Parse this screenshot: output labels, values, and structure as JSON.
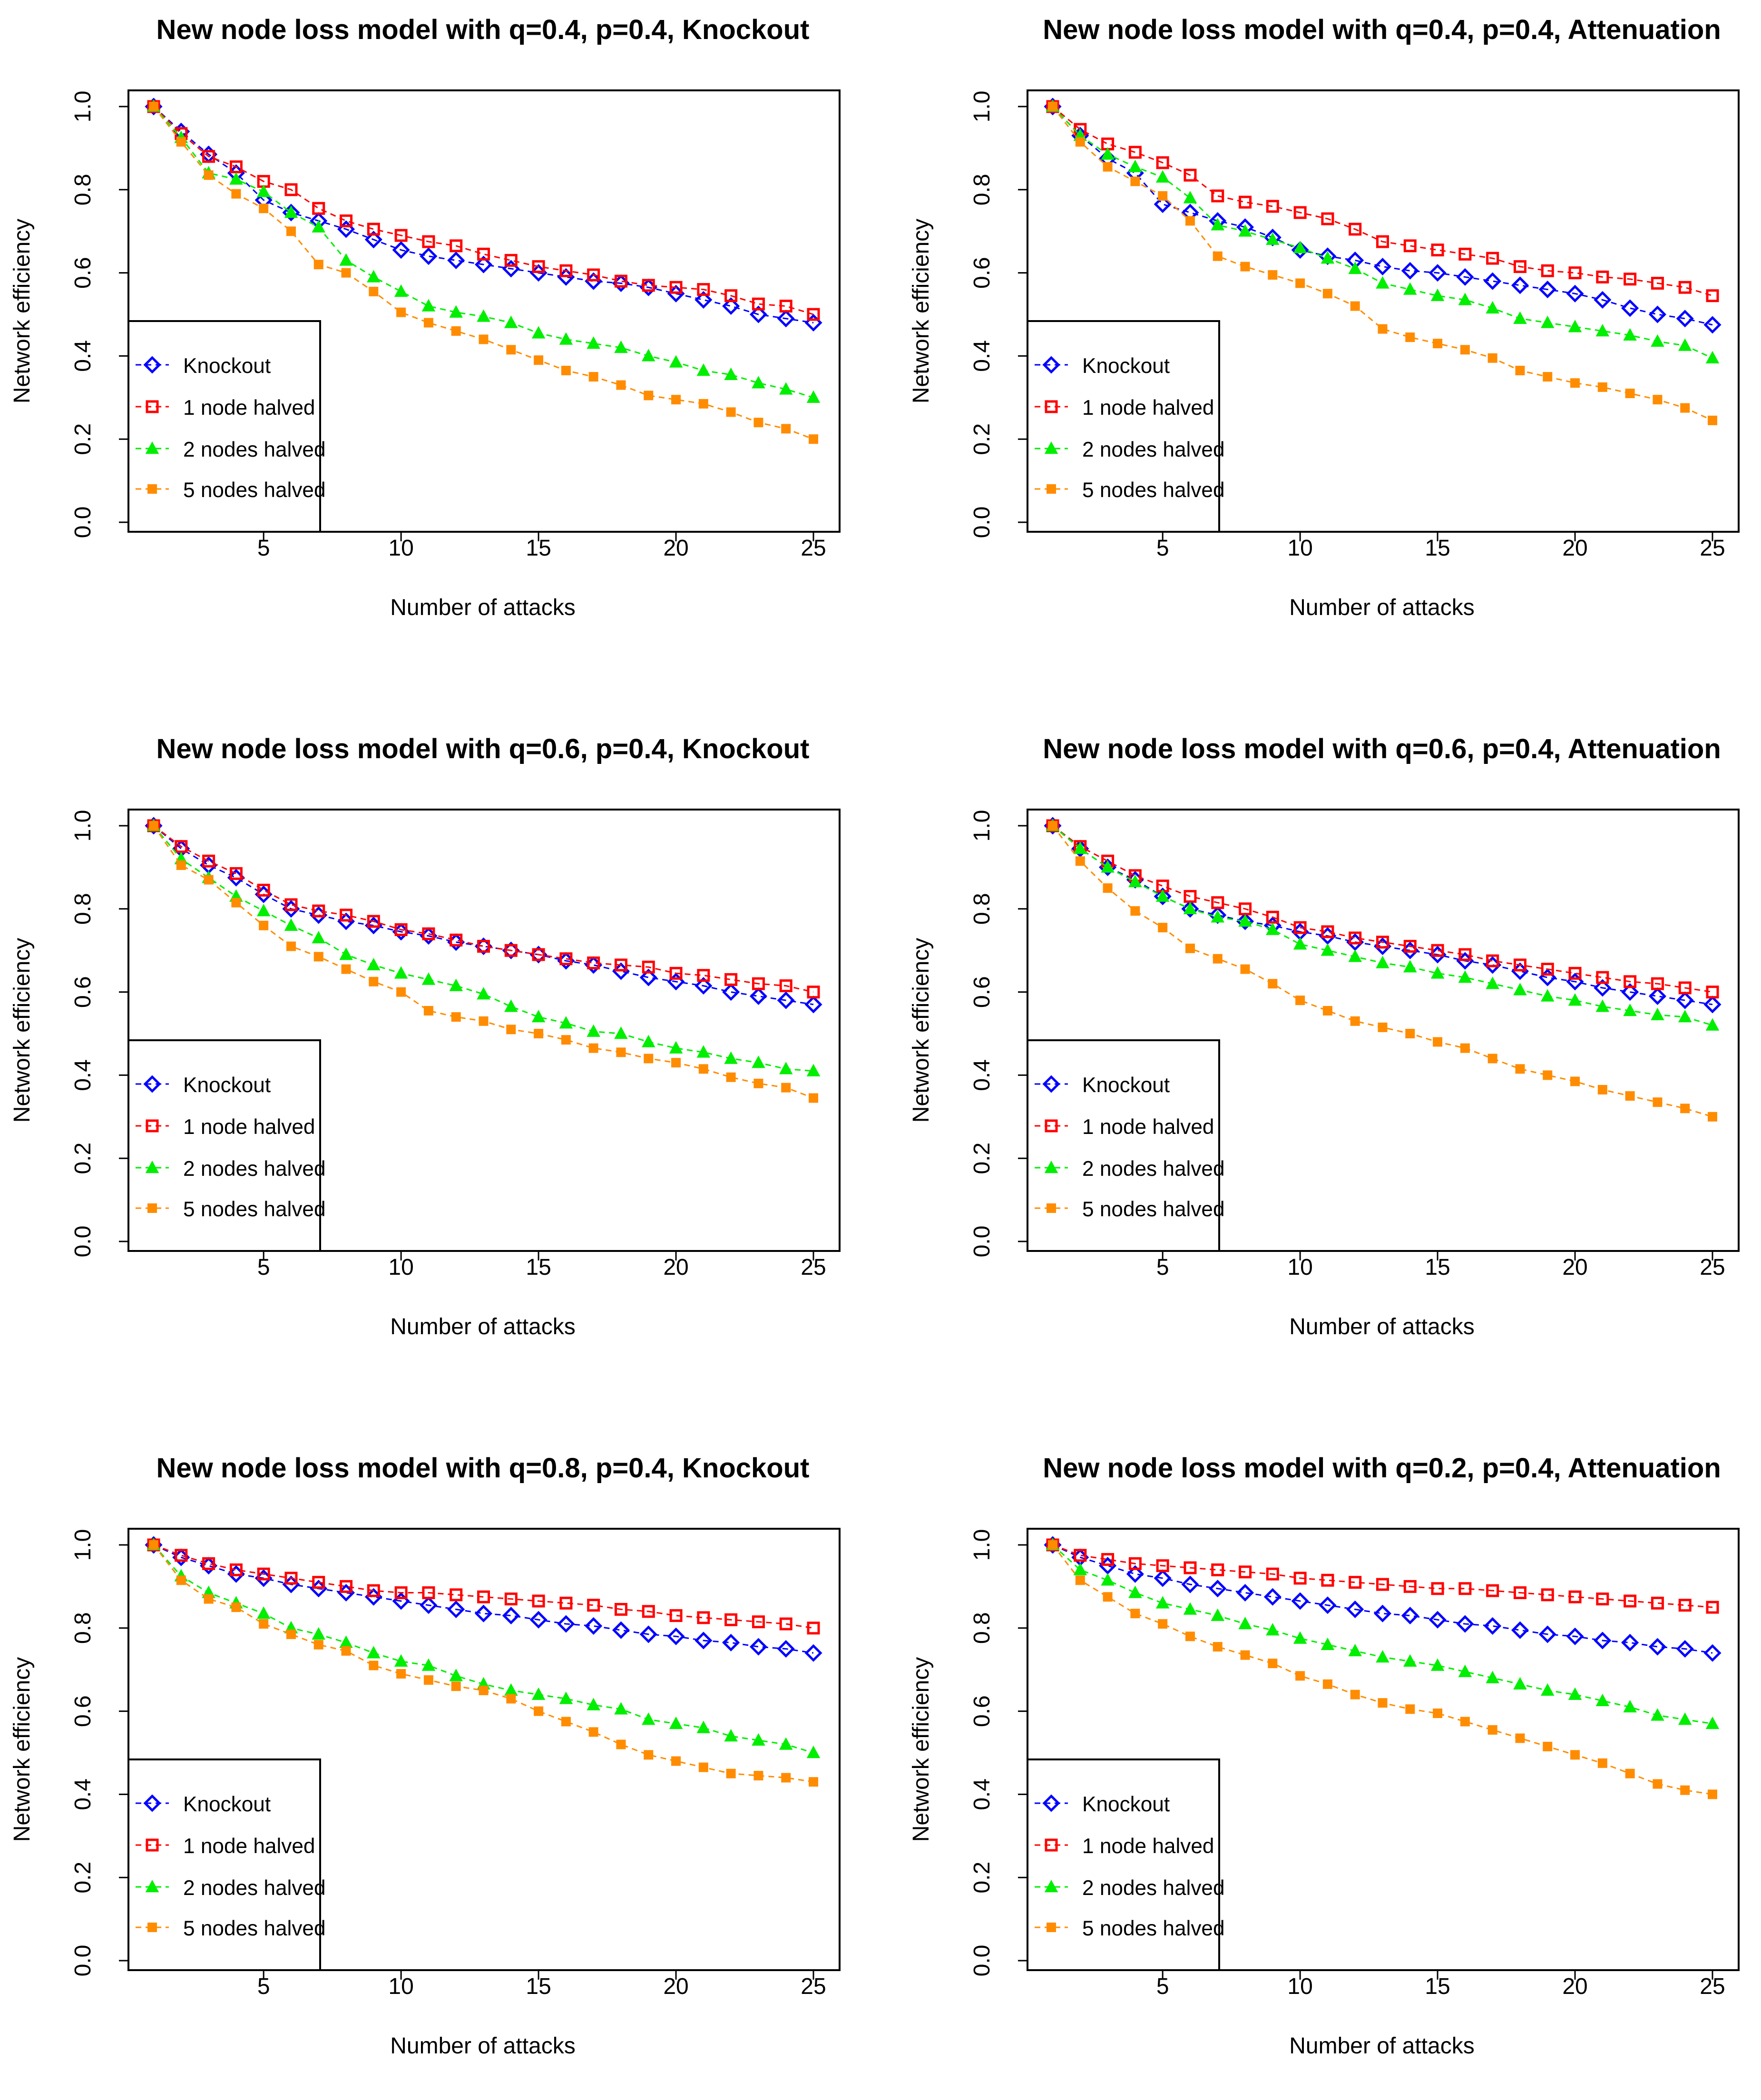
{
  "chart_data": [
    {
      "type": "line",
      "title": "New node loss model with q=0.4, p=0.4, Knockout",
      "xlabel": "Number of attacks",
      "ylabel": "Network efficiency",
      "xlim": [
        1,
        25
      ],
      "ylim": [
        0,
        1
      ],
      "xticks": [
        "5",
        "10",
        "15",
        "20",
        "25"
      ],
      "yticks": [
        "0.0",
        "0.2",
        "0.4",
        "0.6",
        "0.8",
        "1.0"
      ],
      "legend_position": "bottom-left",
      "x": [
        1,
        2,
        3,
        4,
        5,
        6,
        7,
        8,
        9,
        10,
        11,
        12,
        13,
        14,
        15,
        16,
        17,
        18,
        19,
        20,
        21,
        22,
        23,
        24,
        25
      ],
      "series": [
        {
          "name": "Knockout",
          "values": [
            1,
            0.94,
            0.885,
            0.84,
            0.775,
            0.745,
            0.725,
            0.705,
            0.68,
            0.655,
            0.64,
            0.63,
            0.62,
            0.61,
            0.6,
            0.59,
            0.58,
            0.575,
            0.565,
            0.55,
            0.535,
            0.52,
            0.5,
            0.49,
            0.48
          ]
        },
        {
          "name": "1 node halved",
          "values": [
            1,
            0.935,
            0.88,
            0.855,
            0.82,
            0.8,
            0.755,
            0.725,
            0.705,
            0.69,
            0.675,
            0.665,
            0.645,
            0.63,
            0.615,
            0.605,
            0.595,
            0.58,
            0.57,
            0.565,
            0.56,
            0.545,
            0.525,
            0.52,
            0.5
          ]
        },
        {
          "name": "2 nodes halved",
          "values": [
            1,
            0.925,
            0.84,
            0.825,
            0.795,
            0.745,
            0.71,
            0.63,
            0.59,
            0.555,
            0.52,
            0.505,
            0.495,
            0.48,
            0.455,
            0.44,
            0.43,
            0.42,
            0.4,
            0.385,
            0.365,
            0.355,
            0.335,
            0.32,
            0.3
          ]
        },
        {
          "name": "5 nodes halved",
          "values": [
            1,
            0.915,
            0.835,
            0.79,
            0.755,
            0.7,
            0.62,
            0.6,
            0.555,
            0.505,
            0.48,
            0.46,
            0.44,
            0.415,
            0.39,
            0.365,
            0.35,
            0.33,
            0.305,
            0.295,
            0.285,
            0.265,
            0.24,
            0.225,
            0.2
          ]
        }
      ]
    },
    {
      "type": "line",
      "title": "New node loss model with q=0.4, p=0.4, Attenuation",
      "xlabel": "Number of attacks",
      "ylabel": "Network efficiency",
      "xlim": [
        1,
        25
      ],
      "ylim": [
        0,
        1
      ],
      "xticks": [
        "5",
        "10",
        "15",
        "20",
        "25"
      ],
      "yticks": [
        "0.0",
        "0.2",
        "0.4",
        "0.6",
        "0.8",
        "1.0"
      ],
      "legend_position": "bottom-left",
      "x": [
        1,
        2,
        3,
        4,
        5,
        6,
        7,
        8,
        9,
        10,
        11,
        12,
        13,
        14,
        15,
        16,
        17,
        18,
        19,
        20,
        21,
        22,
        23,
        24,
        25
      ],
      "series": [
        {
          "name": "Knockout",
          "values": [
            1,
            0.93,
            0.875,
            0.84,
            0.765,
            0.745,
            0.725,
            0.71,
            0.685,
            0.655,
            0.64,
            0.63,
            0.615,
            0.605,
            0.6,
            0.59,
            0.58,
            0.57,
            0.56,
            0.55,
            0.535,
            0.515,
            0.5,
            0.49,
            0.475
          ]
        },
        {
          "name": "1 node halved",
          "values": [
            1,
            0.945,
            0.91,
            0.89,
            0.865,
            0.835,
            0.785,
            0.77,
            0.76,
            0.745,
            0.73,
            0.705,
            0.675,
            0.665,
            0.655,
            0.645,
            0.635,
            0.615,
            0.605,
            0.6,
            0.59,
            0.585,
            0.575,
            0.565,
            0.545
          ]
        },
        {
          "name": "2 nodes halved",
          "values": [
            1,
            0.93,
            0.885,
            0.855,
            0.83,
            0.78,
            0.715,
            0.7,
            0.68,
            0.66,
            0.635,
            0.61,
            0.575,
            0.56,
            0.545,
            0.535,
            0.515,
            0.49,
            0.48,
            0.47,
            0.46,
            0.45,
            0.435,
            0.425,
            0.395
          ]
        },
        {
          "name": "5 nodes halved",
          "values": [
            1,
            0.915,
            0.855,
            0.82,
            0.785,
            0.725,
            0.64,
            0.615,
            0.595,
            0.575,
            0.55,
            0.52,
            0.465,
            0.445,
            0.43,
            0.415,
            0.395,
            0.365,
            0.35,
            0.335,
            0.325,
            0.31,
            0.295,
            0.275,
            0.245
          ]
        }
      ]
    },
    {
      "type": "line",
      "title": "New node loss model with q=0.6, p=0.4, Knockout",
      "xlabel": "Number of attacks",
      "ylabel": "Network efficiency",
      "xlim": [
        1,
        25
      ],
      "ylim": [
        0,
        1
      ],
      "xticks": [
        "5",
        "10",
        "15",
        "20",
        "25"
      ],
      "yticks": [
        "0.0",
        "0.2",
        "0.4",
        "0.6",
        "0.8",
        "1.0"
      ],
      "legend_position": "bottom-left",
      "x": [
        1,
        2,
        3,
        4,
        5,
        6,
        7,
        8,
        9,
        10,
        11,
        12,
        13,
        14,
        15,
        16,
        17,
        18,
        19,
        20,
        21,
        22,
        23,
        24,
        25
      ],
      "series": [
        {
          "name": "Knockout",
          "values": [
            1,
            0.945,
            0.905,
            0.875,
            0.835,
            0.8,
            0.785,
            0.77,
            0.76,
            0.745,
            0.735,
            0.72,
            0.71,
            0.7,
            0.69,
            0.675,
            0.665,
            0.65,
            0.635,
            0.625,
            0.615,
            0.6,
            0.59,
            0.58,
            0.57
          ]
        },
        {
          "name": "1 node halved",
          "values": [
            1,
            0.95,
            0.915,
            0.885,
            0.845,
            0.81,
            0.795,
            0.785,
            0.77,
            0.75,
            0.74,
            0.725,
            0.71,
            0.7,
            0.69,
            0.68,
            0.67,
            0.665,
            0.66,
            0.645,
            0.64,
            0.63,
            0.62,
            0.615,
            0.6
          ]
        },
        {
          "name": "2 nodes halved",
          "values": [
            1,
            0.92,
            0.875,
            0.83,
            0.795,
            0.76,
            0.73,
            0.69,
            0.665,
            0.645,
            0.63,
            0.615,
            0.595,
            0.565,
            0.54,
            0.525,
            0.505,
            0.5,
            0.48,
            0.465,
            0.455,
            0.44,
            0.43,
            0.415,
            0.41
          ]
        },
        {
          "name": "5 nodes halved",
          "values": [
            1,
            0.905,
            0.87,
            0.815,
            0.76,
            0.71,
            0.685,
            0.655,
            0.625,
            0.6,
            0.555,
            0.54,
            0.53,
            0.51,
            0.5,
            0.485,
            0.465,
            0.455,
            0.44,
            0.43,
            0.415,
            0.395,
            0.38,
            0.37,
            0.345
          ]
        }
      ]
    },
    {
      "type": "line",
      "title": "New node loss model with q=0.6, p=0.4, Attenuation",
      "xlabel": "Number of attacks",
      "ylabel": "Network efficiency",
      "xlim": [
        1,
        25
      ],
      "ylim": [
        0,
        1
      ],
      "xticks": [
        "5",
        "10",
        "15",
        "20",
        "25"
      ],
      "yticks": [
        "0.0",
        "0.2",
        "0.4",
        "0.6",
        "0.8",
        "1.0"
      ],
      "legend_position": "bottom-left",
      "x": [
        1,
        2,
        3,
        4,
        5,
        6,
        7,
        8,
        9,
        10,
        11,
        12,
        13,
        14,
        15,
        16,
        17,
        18,
        19,
        20,
        21,
        22,
        23,
        24,
        25
      ],
      "series": [
        {
          "name": "Knockout",
          "values": [
            1,
            0.945,
            0.9,
            0.87,
            0.83,
            0.8,
            0.785,
            0.77,
            0.76,
            0.745,
            0.735,
            0.72,
            0.71,
            0.7,
            0.69,
            0.675,
            0.665,
            0.65,
            0.635,
            0.625,
            0.61,
            0.6,
            0.59,
            0.58,
            0.57
          ]
        },
        {
          "name": "1 node halved",
          "values": [
            1,
            0.95,
            0.915,
            0.88,
            0.855,
            0.83,
            0.815,
            0.8,
            0.78,
            0.755,
            0.745,
            0.73,
            0.72,
            0.71,
            0.7,
            0.69,
            0.675,
            0.665,
            0.655,
            0.645,
            0.635,
            0.625,
            0.62,
            0.61,
            0.6
          ]
        },
        {
          "name": "2 nodes halved",
          "values": [
            1,
            0.945,
            0.9,
            0.865,
            0.83,
            0.8,
            0.78,
            0.77,
            0.75,
            0.715,
            0.7,
            0.685,
            0.67,
            0.66,
            0.645,
            0.635,
            0.62,
            0.605,
            0.59,
            0.58,
            0.565,
            0.555,
            0.545,
            0.54,
            0.52
          ]
        },
        {
          "name": "5 nodes halved",
          "values": [
            1,
            0.915,
            0.85,
            0.795,
            0.755,
            0.705,
            0.68,
            0.655,
            0.62,
            0.58,
            0.555,
            0.53,
            0.515,
            0.5,
            0.48,
            0.465,
            0.44,
            0.415,
            0.4,
            0.385,
            0.365,
            0.35,
            0.335,
            0.32,
            0.3
          ]
        }
      ]
    },
    {
      "type": "line",
      "title": "New node loss model with q=0.8, p=0.4, Knockout",
      "xlabel": "Number of attacks",
      "ylabel": "Network efficiency",
      "xlim": [
        1,
        25
      ],
      "ylim": [
        0,
        1
      ],
      "xticks": [
        "5",
        "10",
        "15",
        "20",
        "25"
      ],
      "yticks": [
        "0.0",
        "0.2",
        "0.4",
        "0.6",
        "0.8",
        "1.0"
      ],
      "legend_position": "bottom-left",
      "x": [
        1,
        2,
        3,
        4,
        5,
        6,
        7,
        8,
        9,
        10,
        11,
        12,
        13,
        14,
        15,
        16,
        17,
        18,
        19,
        20,
        21,
        22,
        23,
        24,
        25
      ],
      "series": [
        {
          "name": "Knockout",
          "values": [
            1,
            0.97,
            0.95,
            0.93,
            0.92,
            0.905,
            0.895,
            0.885,
            0.875,
            0.865,
            0.855,
            0.845,
            0.835,
            0.83,
            0.82,
            0.81,
            0.805,
            0.795,
            0.785,
            0.78,
            0.77,
            0.765,
            0.755,
            0.75,
            0.74
          ]
        },
        {
          "name": "1 node halved",
          "values": [
            1,
            0.975,
            0.955,
            0.94,
            0.93,
            0.92,
            0.91,
            0.9,
            0.89,
            0.885,
            0.885,
            0.88,
            0.875,
            0.87,
            0.865,
            0.86,
            0.855,
            0.845,
            0.84,
            0.83,
            0.825,
            0.82,
            0.815,
            0.81,
            0.8
          ]
        },
        {
          "name": "2 nodes halved",
          "values": [
            1,
            0.925,
            0.885,
            0.86,
            0.835,
            0.8,
            0.785,
            0.765,
            0.74,
            0.72,
            0.71,
            0.685,
            0.665,
            0.65,
            0.64,
            0.63,
            0.615,
            0.605,
            0.58,
            0.57,
            0.56,
            0.54,
            0.53,
            0.52,
            0.5
          ]
        },
        {
          "name": "5 nodes halved",
          "values": [
            1,
            0.915,
            0.87,
            0.85,
            0.81,
            0.785,
            0.76,
            0.745,
            0.71,
            0.69,
            0.675,
            0.66,
            0.65,
            0.63,
            0.6,
            0.575,
            0.55,
            0.52,
            0.495,
            0.48,
            0.465,
            0.45,
            0.445,
            0.44,
            0.43
          ]
        }
      ]
    },
    {
      "type": "line",
      "title": "New node loss model with q=0.2, p=0.4, Attenuation",
      "xlabel": "Number of attacks",
      "ylabel": "Network efficiency",
      "xlim": [
        1,
        25
      ],
      "ylim": [
        0,
        1
      ],
      "xticks": [
        "5",
        "10",
        "15",
        "20",
        "25"
      ],
      "yticks": [
        "0.0",
        "0.2",
        "0.4",
        "0.6",
        "0.8",
        "1.0"
      ],
      "legend_position": "bottom-left",
      "x": [
        1,
        2,
        3,
        4,
        5,
        6,
        7,
        8,
        9,
        10,
        11,
        12,
        13,
        14,
        15,
        16,
        17,
        18,
        19,
        20,
        21,
        22,
        23,
        24,
        25
      ],
      "series": [
        {
          "name": "Knockout",
          "values": [
            1,
            0.97,
            0.95,
            0.93,
            0.92,
            0.905,
            0.895,
            0.885,
            0.875,
            0.865,
            0.855,
            0.845,
            0.835,
            0.83,
            0.82,
            0.81,
            0.805,
            0.795,
            0.785,
            0.78,
            0.77,
            0.765,
            0.755,
            0.75,
            0.74
          ]
        },
        {
          "name": "1 node halved",
          "values": [
            1,
            0.975,
            0.965,
            0.955,
            0.95,
            0.945,
            0.94,
            0.935,
            0.93,
            0.92,
            0.915,
            0.91,
            0.905,
            0.9,
            0.895,
            0.895,
            0.89,
            0.885,
            0.88,
            0.875,
            0.87,
            0.865,
            0.86,
            0.855,
            0.85
          ]
        },
        {
          "name": "2 nodes halved",
          "values": [
            1,
            0.94,
            0.915,
            0.885,
            0.86,
            0.845,
            0.83,
            0.81,
            0.795,
            0.775,
            0.76,
            0.745,
            0.73,
            0.72,
            0.71,
            0.695,
            0.68,
            0.665,
            0.65,
            0.64,
            0.625,
            0.61,
            0.59,
            0.58,
            0.57
          ]
        },
        {
          "name": "5 nodes halved",
          "values": [
            1,
            0.915,
            0.875,
            0.835,
            0.81,
            0.78,
            0.755,
            0.735,
            0.715,
            0.685,
            0.665,
            0.64,
            0.62,
            0.605,
            0.595,
            0.575,
            0.555,
            0.535,
            0.515,
            0.495,
            0.475,
            0.45,
            0.425,
            0.41,
            0.4
          ]
        }
      ]
    }
  ],
  "styles": {
    "colors": [
      "#0000ff",
      "#ff0000",
      "#00ee00",
      "#ff8c00"
    ],
    "markers": [
      "open-diamond",
      "open-square",
      "filled-triangle",
      "filled-square"
    ]
  }
}
